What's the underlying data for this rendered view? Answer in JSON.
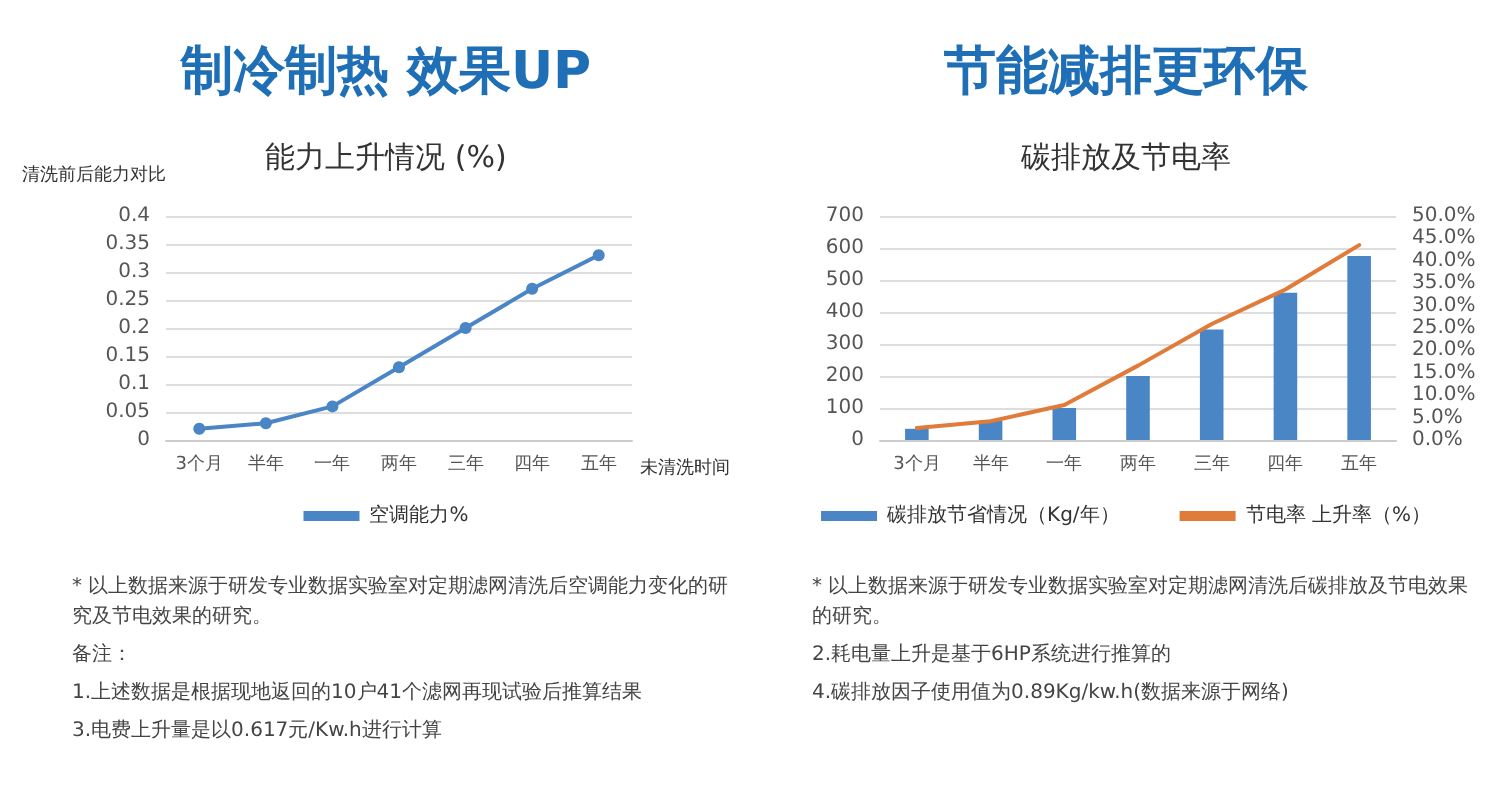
{
  "chart_data": [
    {
      "type": "line",
      "title": "制冷制热 效果UP",
      "subtitle": "能力上升情况 (%)",
      "ylabel": "清洗前后能力对比",
      "xlabel": "未清洗时间",
      "categories": [
        "3个月",
        "半年",
        "一年",
        "两年",
        "三年",
        "四年",
        "五年"
      ],
      "series": [
        {
          "name": "空调能力%",
          "color": "#4a86c5",
          "values": [
            0.02,
            0.03,
            0.06,
            0.13,
            0.2,
            0.27,
            0.33
          ]
        }
      ],
      "ylim": [
        0,
        0.4
      ],
      "yticks": [
        0,
        0.05,
        0.1,
        0.15,
        0.2,
        0.25,
        0.3,
        0.35,
        0.4
      ],
      "grid": "y",
      "legend": "bottom",
      "marker": "circle",
      "line_style": "solid",
      "annotations": [
        "* 以上数据来源于研发专业数据实验室对定期滤网清洗后空调能力变化的研究及节电效果的研究。",
        "备注：",
        "1.上述数据是根据现地返回的10户41个滤网再现试验后推算结果",
        "3.电费上升量是以0.617元/Kw.h进行计算"
      ]
    },
    {
      "type": "bar",
      "title": "节能减排更环保",
      "subtitle": "碳排放及节电率",
      "categories": [
        "3个月",
        "半年",
        "一年",
        "两年",
        "三年",
        "四年",
        "五年"
      ],
      "series": [
        {
          "name": "碳排放节省情况（Kg/年）",
          "color": "#4a86c5",
          "values": [
            35,
            60,
            100,
            200,
            345,
            460,
            575
          ]
        },
        {
          "name": "节电率 上升率（%）",
          "type": "line",
          "axis": "y2",
          "color": "#e07b39",
          "values": [
            2.7,
            4.2,
            7.8,
            16.6,
            25.9,
            33.6,
            43.5
          ]
        }
      ],
      "ylim": [
        0,
        700
      ],
      "yticks": [
        0,
        100,
        200,
        300,
        400,
        500,
        600,
        700
      ],
      "y2lim": [
        0,
        50
      ],
      "y2ticks": [
        {
          "value": 0,
          "label": "0.0%"
        },
        {
          "value": 5,
          "label": "5.0%"
        },
        {
          "value": 10,
          "label": "10.0%"
        },
        {
          "value": 15,
          "label": "15.0%"
        },
        {
          "value": 20,
          "label": "20.0%"
        },
        {
          "value": 25,
          "label": "25.0%"
        },
        {
          "value": 30,
          "label": "30.0%"
        },
        {
          "value": 35,
          "label": "35.0%"
        },
        {
          "value": 40,
          "label": "40.0%"
        },
        {
          "value": 45,
          "label": "45.0%"
        },
        {
          "value": 50,
          "label": "50.0%"
        }
      ],
      "grid": "y",
      "legend": "bottom",
      "marker": "none",
      "line_style": "solid",
      "annotations": [
        "* 以上数据来源于研发专业数据实验室对定期滤网清洗后碳排放及节电效果的研究。",
        "2.耗电量上升是基于6HP系统进行推算的",
        "4.碳排放因子使用值为0.89Kg/kw.h(数据来源于网络)"
      ]
    }
  ]
}
